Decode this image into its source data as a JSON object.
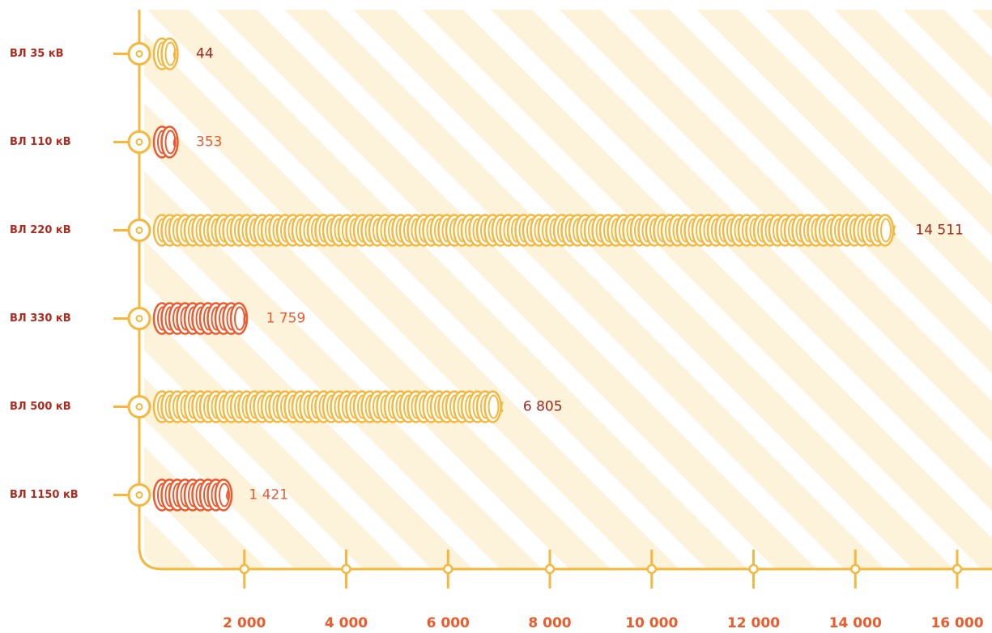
{
  "chart_data": {
    "type": "bar",
    "orientation": "horizontal",
    "categories": [
      "ВЛ 35 кВ",
      "ВЛ 110 кВ",
      "ВЛ 220 кВ",
      "ВЛ 330 кВ",
      "ВЛ 500 кВ",
      "ВЛ 1150 кВ"
    ],
    "values": [
      44,
      353,
      14511,
      1759,
      6805,
      1421
    ],
    "value_labels": [
      "44",
      "353",
      "14 511",
      "1 759",
      "6 805",
      "1 421"
    ],
    "colors": [
      "#f6b73c",
      "#ee5a2c",
      "#f6b73c",
      "#ee5a2c",
      "#f6b73c",
      "#ee5a2c"
    ],
    "value_label_colors": [
      "#a3281c",
      "#ee5a2c",
      "#a3281c",
      "#ee5a2c",
      "#a3281c",
      "#ee5a2c"
    ],
    "xlim": [
      0,
      16000
    ],
    "xticks": [
      {
        "value": 2000,
        "label": "2 000"
      },
      {
        "value": 4000,
        "label": "4 000"
      },
      {
        "value": 6000,
        "label": "6 000"
      },
      {
        "value": 8000,
        "label": "8 000"
      },
      {
        "value": 10000,
        "label": "10 000"
      },
      {
        "value": 12000,
        "label": "12 000"
      },
      {
        "value": 14000,
        "label": "14 000"
      },
      {
        "value": 16000,
        "label": "16 000"
      }
    ]
  }
}
